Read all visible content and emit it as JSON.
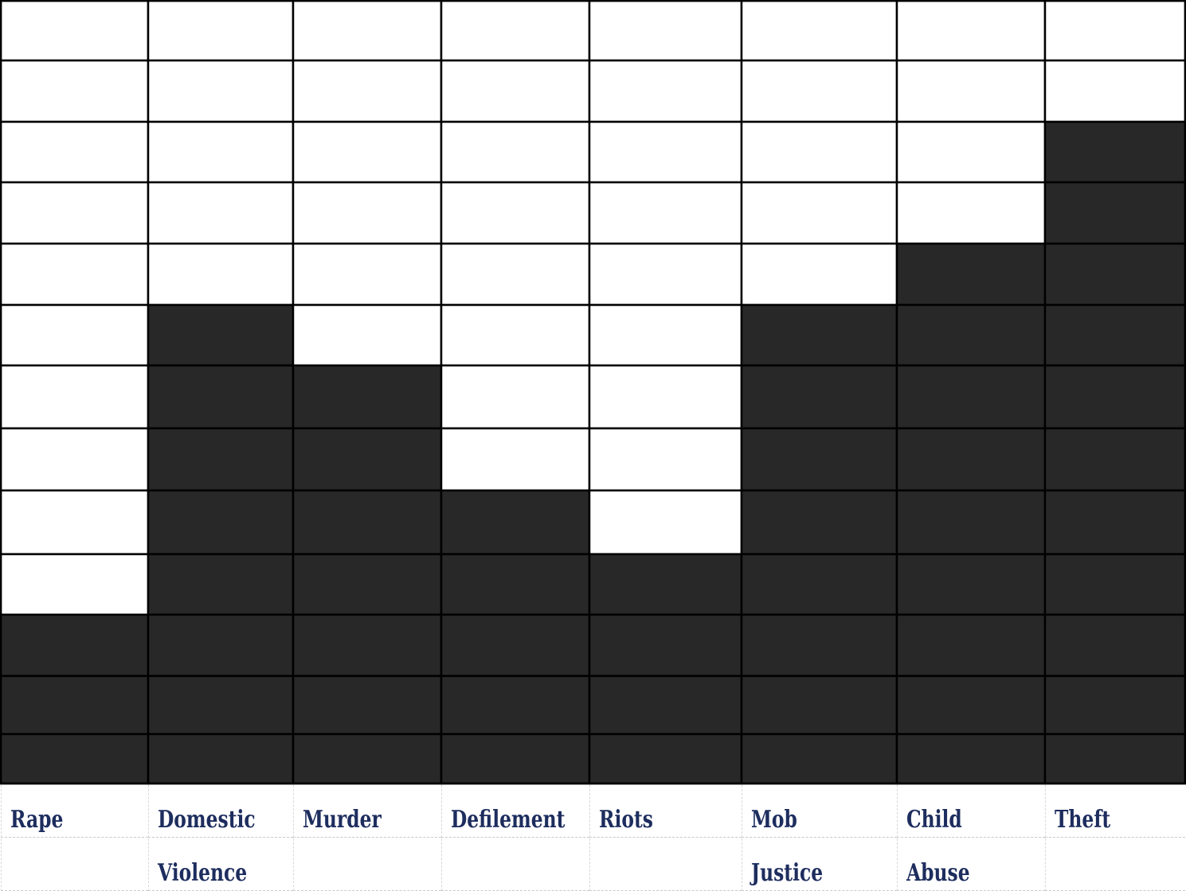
{
  "chart_data": {
    "type": "bar",
    "categories": [
      [
        "Rape",
        ""
      ],
      [
        "Domestic",
        "Violence"
      ],
      [
        "Murder",
        ""
      ],
      [
        "Defilement",
        ""
      ],
      [
        "Riots",
        ""
      ],
      [
        "Mob",
        "Justice"
      ],
      [
        "Child",
        "Abuse"
      ],
      [
        "Theft",
        ""
      ]
    ],
    "values": [
      3,
      8,
      7,
      5,
      4,
      8,
      9,
      11
    ],
    "ylim": [
      0,
      13
    ],
    "grid": true,
    "colors": {
      "filled": "#282828",
      "empty": "#ffffff",
      "grid": "#000000",
      "label": "#1d2d5e"
    }
  }
}
